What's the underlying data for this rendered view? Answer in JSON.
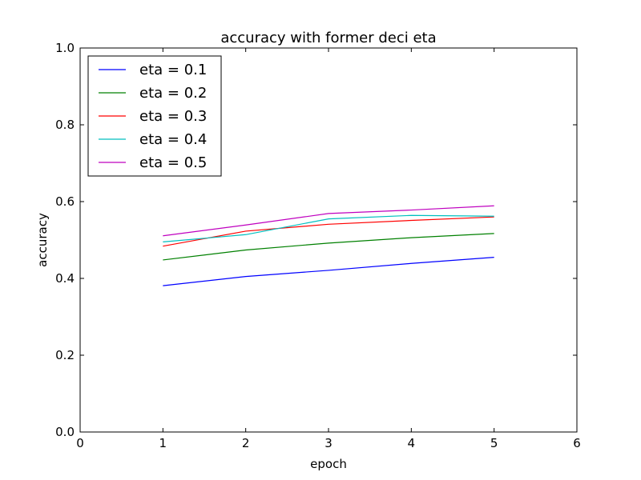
{
  "chart_data": {
    "type": "line",
    "title": "accuracy with former deci eta",
    "xlabel": "epoch",
    "ylabel": "accuracy",
    "xlim": [
      0,
      6
    ],
    "ylim": [
      0.0,
      1.0
    ],
    "xticks": [
      "0",
      "1",
      "2",
      "3",
      "4",
      "5",
      "6"
    ],
    "yticks": [
      "0.0",
      "0.2",
      "0.4",
      "0.6",
      "0.8",
      "1.0"
    ],
    "grid": false,
    "legend_position": "top-left",
    "x": [
      1,
      2,
      3,
      4,
      5
    ],
    "series": [
      {
        "name": "eta = 0.1",
        "color": "#0000ff",
        "values": [
          0.381,
          0.405,
          0.421,
          0.439,
          0.455
        ]
      },
      {
        "name": "eta = 0.2",
        "color": "#008000",
        "values": [
          0.448,
          0.474,
          0.492,
          0.506,
          0.517
        ]
      },
      {
        "name": "eta = 0.3",
        "color": "#ff0000",
        "values": [
          0.484,
          0.523,
          0.541,
          0.551,
          0.56
        ]
      },
      {
        "name": "eta = 0.4",
        "color": "#00bfbf",
        "values": [
          0.495,
          0.514,
          0.555,
          0.564,
          0.562
        ]
      },
      {
        "name": "eta = 0.5",
        "color": "#bf00bf",
        "values": [
          0.511,
          0.539,
          0.569,
          0.578,
          0.589
        ]
      }
    ]
  }
}
